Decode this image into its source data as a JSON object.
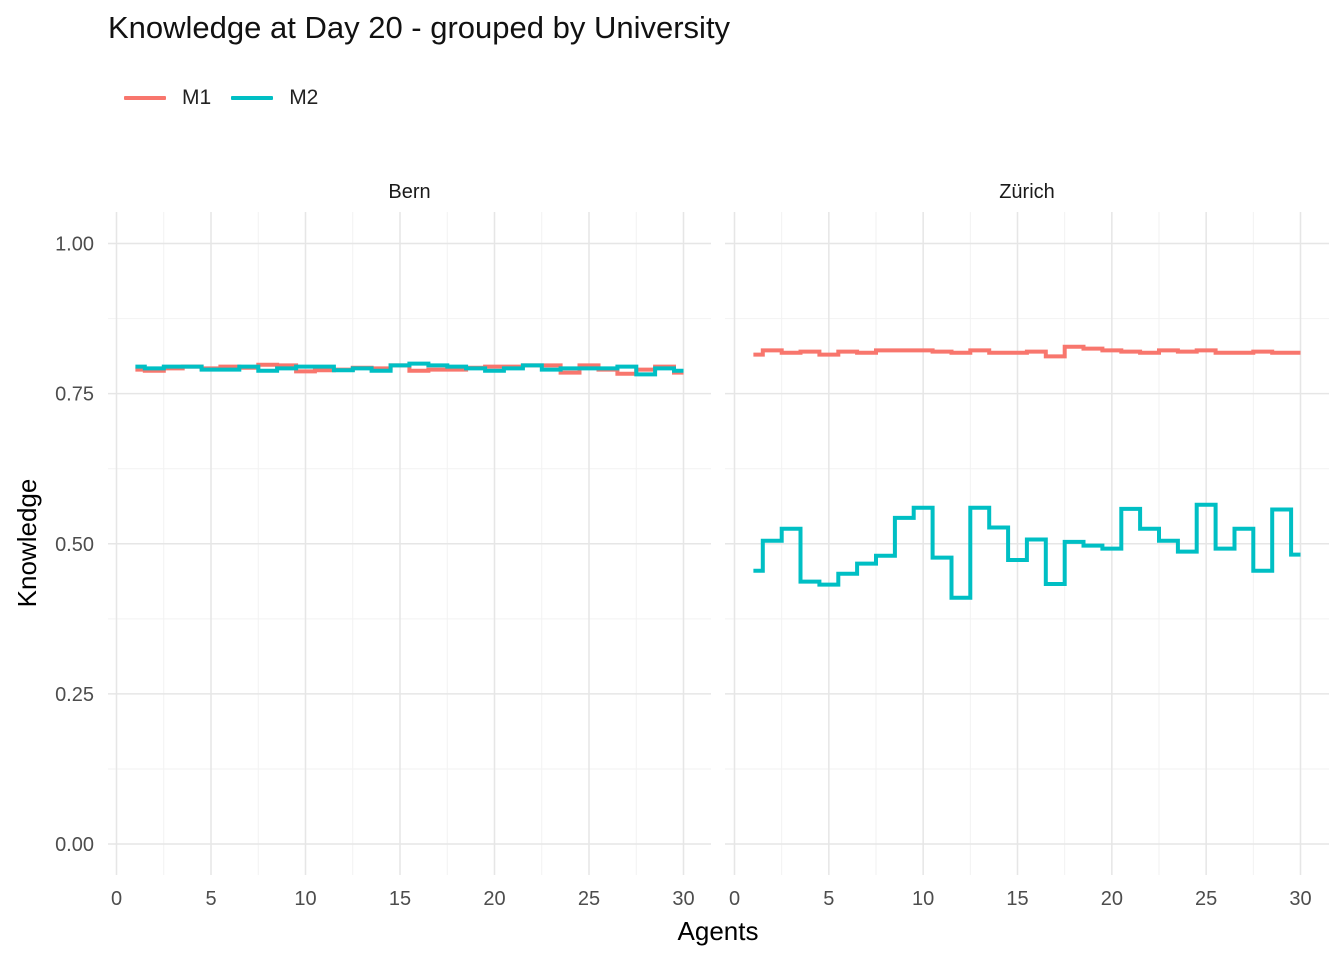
{
  "chart_data": {
    "type": "line",
    "step": true,
    "title": "Knowledge at Day 20 - grouped by University",
    "xlabel": "Agents",
    "ylabel": "Knowledge",
    "xlim": [
      0,
      30
    ],
    "ylim": [
      0,
      1
    ],
    "x_ticks": [
      0,
      5,
      10,
      15,
      20,
      25,
      30
    ],
    "y_ticks": [
      0.0,
      0.25,
      0.5,
      0.75,
      1.0
    ],
    "y_tick_labels": [
      "0.00",
      "0.25",
      "0.50",
      "0.75",
      "1.00"
    ],
    "grid": true,
    "legend_position": "top-left",
    "series_names": [
      "M1",
      "M2"
    ],
    "colors": {
      "M1": "#F8766D",
      "M2": "#00BFC4"
    },
    "x": [
      1,
      2,
      3,
      4,
      5,
      6,
      7,
      8,
      9,
      10,
      11,
      12,
      13,
      14,
      15,
      16,
      17,
      18,
      19,
      20,
      21,
      22,
      23,
      24,
      25,
      26,
      27,
      28,
      29,
      30
    ],
    "panels": [
      {
        "label": "Bern",
        "series": [
          {
            "name": "M1",
            "values": [
              0.79,
              0.788,
              0.792,
              0.795,
              0.792,
              0.795,
              0.793,
              0.798,
              0.797,
              0.787,
              0.789,
              0.79,
              0.793,
              0.792,
              0.797,
              0.788,
              0.79,
              0.79,
              0.793,
              0.795,
              0.795,
              0.797,
              0.797,
              0.785,
              0.797,
              0.79,
              0.783,
              0.79,
              0.795,
              0.785
            ]
          },
          {
            "name": "M2",
            "values": [
              0.795,
              0.792,
              0.795,
              0.795,
              0.79,
              0.79,
              0.795,
              0.788,
              0.792,
              0.795,
              0.795,
              0.789,
              0.792,
              0.788,
              0.797,
              0.8,
              0.797,
              0.795,
              0.792,
              0.788,
              0.792,
              0.797,
              0.79,
              0.792,
              0.792,
              0.792,
              0.795,
              0.782,
              0.792,
              0.788
            ]
          }
        ]
      },
      {
        "label": "Zürich",
        "series": [
          {
            "name": "M1",
            "values": [
              0.815,
              0.822,
              0.818,
              0.82,
              0.815,
              0.82,
              0.818,
              0.822,
              0.822,
              0.822,
              0.82,
              0.818,
              0.822,
              0.818,
              0.818,
              0.82,
              0.812,
              0.828,
              0.825,
              0.822,
              0.82,
              0.818,
              0.822,
              0.82,
              0.822,
              0.818,
              0.818,
              0.82,
              0.818,
              0.818
            ]
          },
          {
            "name": "M2",
            "values": [
              0.455,
              0.505,
              0.525,
              0.437,
              0.432,
              0.45,
              0.467,
              0.48,
              0.543,
              0.56,
              0.477,
              0.41,
              0.56,
              0.527,
              0.473,
              0.507,
              0.433,
              0.503,
              0.497,
              0.492,
              0.558,
              0.525,
              0.505,
              0.487,
              0.565,
              0.492,
              0.525,
              0.455,
              0.557,
              0.482
            ]
          }
        ]
      }
    ]
  }
}
